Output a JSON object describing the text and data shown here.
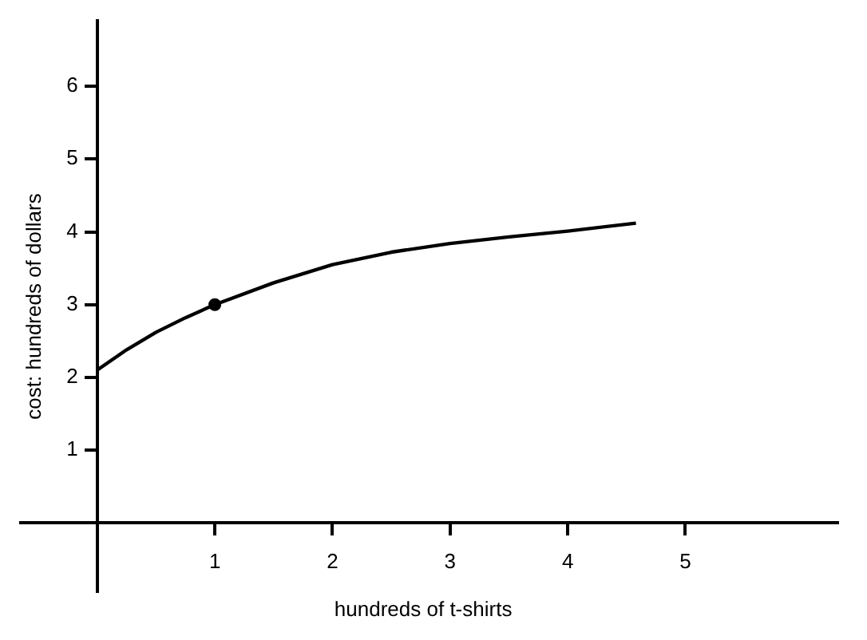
{
  "chart_data": {
    "type": "line",
    "xlabel": "hundreds of t-shirts",
    "ylabel": "cost: hundreds of dollars",
    "xlim": [
      -0.65,
      6.3
    ],
    "ylim": [
      -0.95,
      6.9
    ],
    "xticks": [
      1,
      2,
      3,
      4,
      5
    ],
    "yticks": [
      1,
      2,
      3,
      4,
      5,
      6
    ],
    "grid": false,
    "legend": false,
    "series": [
      {
        "color": "#000000",
        "marker": "none",
        "x": [
          0,
          0.25,
          0.5,
          0.75,
          1,
          1.5,
          2,
          2.5,
          3,
          3.5,
          4,
          4.58
        ],
        "values": [
          2.1,
          2.38,
          2.62,
          2.82,
          3,
          3.3,
          3.55,
          3.72,
          3.84,
          3.93,
          4.01,
          4.12
        ]
      },
      {
        "type": "scatter",
        "color": "#000000",
        "marker": "circle",
        "x": [
          1
        ],
        "values": [
          3
        ]
      }
    ]
  }
}
